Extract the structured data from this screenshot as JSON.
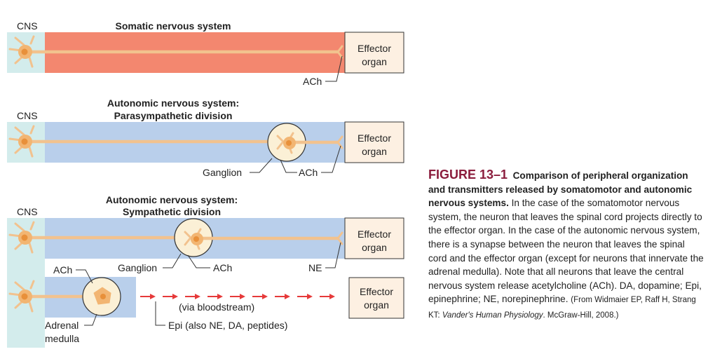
{
  "diagram": {
    "somatic": {
      "cns_label": "CNS",
      "title": "Somatic nervous system",
      "effector": [
        "Effector",
        "organ"
      ],
      "ach_label": "ACh"
    },
    "parasympathetic": {
      "cns_label": "CNS",
      "title": [
        "Autonomic nervous system:",
        "Parasympathetic division"
      ],
      "effector": [
        "Effector",
        "organ"
      ],
      "ganglion_label": "Ganglion",
      "ach_label": "ACh"
    },
    "sympathetic": {
      "cns_label": "CNS",
      "title": [
        "Autonomic nervous system:",
        "Sympathetic division"
      ],
      "effector": [
        "Effector",
        "organ"
      ],
      "ganglion_label": "Ganglion",
      "ach_label": "ACh",
      "ne_label": "NE"
    },
    "adrenal": {
      "ach_label": "ACh",
      "adrenal_label": [
        "Adrenal",
        "medulla"
      ],
      "bloodstream_label": "(via bloodstream)",
      "epi_label": "Epi (also NE, DA, peptides)",
      "effector": [
        "Effector",
        "organ"
      ]
    },
    "colors": {
      "cns_fill": "#d3ecec",
      "somatic_fill": "#f3876f",
      "autonomic_fill": "#b9cfeb",
      "axon": "#f2c28e",
      "soma": "#f2b572",
      "nucleus": "#e8903a",
      "ganglion_fill": "#fbf0d6",
      "effector_fill": "#fdf0e2",
      "arrow": "#e63a3a"
    }
  },
  "caption": {
    "figure": "FIGURE 13–1",
    "title": "Comparison of peripheral organization and transmitters released by somatomotor and autonomic nervous systems.",
    "body": "In the case of the somatomotor nervous system, the neuron that leaves the spinal cord projects directly to the effector organ. In the case of the autonomic nervous system, there is a synapse between the neuron that leaves the spinal cord and the effector organ (except for neurons that innervate the adrenal medulla). Note that all neurons that leave the central nervous system release acetylcholine (ACh). DA, dopamine; Epi, epinephrine; NE, norepinephrine.",
    "source_prefix": "(From Widmaier EP, Raff H, Strang KT: ",
    "source_title": "Vander's Human Physiology",
    "source_suffix": ". McGraw-Hill, 2008.)"
  }
}
